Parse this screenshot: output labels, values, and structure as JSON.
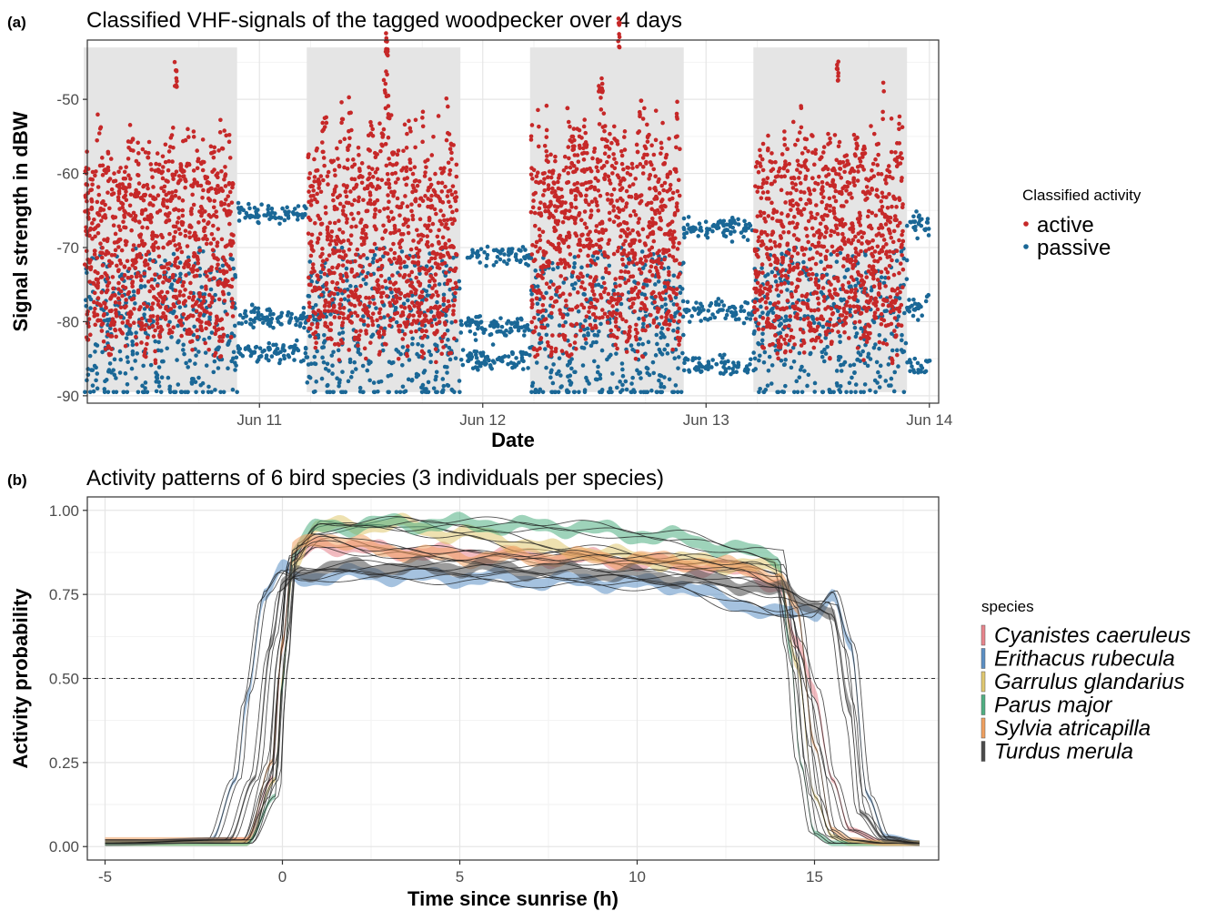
{
  "panels": {
    "a": {
      "tag": "(a)"
    },
    "b": {
      "tag": "(b)"
    }
  },
  "chart_data": [
    {
      "type": "scatter",
      "title": "Classified VHF-signals of the tagged woodpecker over 4 days",
      "xlabel": "Date",
      "ylabel": "Signal strength in dBW",
      "x_unit": "days (Jun 10 = 10.0)",
      "xlim": [
        "Jun 10 05:30",
        "Jun 14 01:00"
      ],
      "ylim": [
        -91,
        -42
      ],
      "x_ticks": [
        {
          "value": 11,
          "label": "Jun 11"
        },
        {
          "value": 12,
          "label": "Jun 12"
        },
        {
          "value": 13,
          "label": "Jun 13"
        },
        {
          "value": 14,
          "label": "Jun 14"
        }
      ],
      "y_ticks": [
        {
          "value": -50,
          "label": "-50"
        },
        {
          "value": -60,
          "label": "-60"
        },
        {
          "value": -70,
          "label": "-70"
        },
        {
          "value": -80,
          "label": "-80"
        },
        {
          "value": -90,
          "label": "-90"
        }
      ],
      "grid": true,
      "background": "#ffffff",
      "shaded_periods": [
        {
          "start": "Jun 10 05:07",
          "end": "Jun 10 21:36",
          "label": "day"
        },
        {
          "start": "Jun 11 05:05",
          "end": "Jun 11 21:36",
          "label": "day"
        },
        {
          "start": "Jun 12 05:05",
          "end": "Jun 12 21:36",
          "label": "day"
        },
        {
          "start": "Jun 13 05:05",
          "end": "Jun 13 21:36",
          "label": "day"
        }
      ],
      "shaded_color": "#e5e5e5",
      "legend": {
        "title": "Classified activity",
        "position": "right",
        "entries": [
          {
            "name": "active",
            "color": "#c62828"
          },
          {
            "name": "passive",
            "color": "#1a6796"
          }
        ]
      },
      "series": [
        {
          "name": "active",
          "color": "#c62828",
          "note": "dense noisy points during daytime; visible maxima per day",
          "daily_peaks": [
            {
              "day": "Jun 10",
              "max": -48.5,
              "min": -88
            },
            {
              "day": "Jun 11",
              "max": -44.5,
              "min": -89
            },
            {
              "day": "Jun 12",
              "max": -43,
              "min": -89
            },
            {
              "day": "Jun 13",
              "max": -47.5,
              "min": -89
            }
          ]
        },
        {
          "name": "passive",
          "color": "#1a6796",
          "note": "night-time bands at several stable signal levels",
          "night_bands": [
            {
              "night": "Jun 10-11",
              "levels": [
                -65.5,
                -79.5,
                -84
              ]
            },
            {
              "night": "Jun 11-12",
              "levels": [
                -71,
                -80.5,
                -85
              ]
            },
            {
              "night": "Jun 12-13",
              "levels": [
                -67.5,
                -78.5,
                -86
              ]
            },
            {
              "night": "Jun 13-14",
              "levels": [
                -67,
                -78,
                -86
              ]
            }
          ]
        }
      ]
    },
    {
      "type": "line",
      "title": "Activity patterns of 6 bird species (3 individuals per species)",
      "xlabel": "Time since sunrise (h)",
      "ylabel": "Activity probability",
      "xlim": [
        -5.5,
        18.5
      ],
      "ylim": [
        -0.04,
        1.04
      ],
      "x_ticks": [
        {
          "value": -5,
          "label": "-5"
        },
        {
          "value": 0,
          "label": "0"
        },
        {
          "value": 5,
          "label": "5"
        },
        {
          "value": 10,
          "label": "10"
        },
        {
          "value": 15,
          "label": "15"
        }
      ],
      "y_ticks": [
        {
          "value": 0,
          "label": "0.00"
        },
        {
          "value": 0.25,
          "label": "0.25"
        },
        {
          "value": 0.5,
          "label": "0.50"
        },
        {
          "value": 0.75,
          "label": "0.75"
        },
        {
          "value": 1,
          "label": "1.00"
        }
      ],
      "grid": true,
      "reference_line": {
        "y": 0.5,
        "style": "dashed"
      },
      "legend": {
        "title": "species",
        "position": "right"
      },
      "series": [
        {
          "name": "Cyanistes caeruleus",
          "color": "#e8848c",
          "x": [
            -5,
            -1,
            -0.3,
            0,
            0.3,
            1,
            3,
            5,
            8,
            11,
            13,
            14,
            14.5,
            15,
            15.5,
            16,
            17,
            18
          ],
          "values": [
            0.01,
            0.02,
            0.2,
            0.6,
            0.85,
            0.9,
            0.88,
            0.87,
            0.86,
            0.84,
            0.82,
            0.78,
            0.6,
            0.45,
            0.2,
            0.05,
            0.01,
            0.01
          ]
        },
        {
          "name": "Erithacus rubecula",
          "color": "#5b8fc4",
          "x": [
            -5,
            -2,
            -1.3,
            -1,
            -0.5,
            0,
            0.5,
            2,
            5,
            8,
            11,
            13,
            14,
            15,
            15.5,
            16,
            16.5,
            17,
            18
          ],
          "values": [
            0.01,
            0.02,
            0.2,
            0.45,
            0.75,
            0.82,
            0.8,
            0.81,
            0.8,
            0.79,
            0.78,
            0.72,
            0.69,
            0.7,
            0.75,
            0.6,
            0.15,
            0.03,
            0.01
          ]
        },
        {
          "name": "Garrulus glandarius",
          "color": "#e0c870",
          "x": [
            -5,
            -1,
            -0.2,
            0,
            0.3,
            1,
            3,
            5,
            8,
            11,
            13,
            14,
            14.5,
            15,
            15.5,
            16,
            17,
            18
          ],
          "values": [
            0.01,
            0.01,
            0.2,
            0.5,
            0.85,
            0.95,
            0.96,
            0.93,
            0.88,
            0.85,
            0.84,
            0.82,
            0.55,
            0.15,
            0.03,
            0.01,
            0.01,
            0.01
          ]
        },
        {
          "name": "Parus major",
          "color": "#4fae82",
          "x": [
            -5,
            -1,
            -0.2,
            0,
            0.3,
            1,
            3,
            5,
            8,
            11,
            13,
            14,
            14.3,
            14.6,
            15,
            15.5,
            17,
            18
          ],
          "values": [
            0.01,
            0.01,
            0.15,
            0.5,
            0.88,
            0.95,
            0.96,
            0.96,
            0.95,
            0.92,
            0.88,
            0.86,
            0.6,
            0.25,
            0.04,
            0.01,
            0.01,
            0.01
          ]
        },
        {
          "name": "Sylvia atricapilla",
          "color": "#f0a060",
          "x": [
            -5,
            -1,
            -0.3,
            0,
            0.3,
            1,
            3,
            5,
            8,
            11,
            13,
            14,
            14.5,
            15,
            15.5,
            16,
            17,
            18
          ],
          "values": [
            0.02,
            0.02,
            0.25,
            0.6,
            0.88,
            0.92,
            0.88,
            0.86,
            0.86,
            0.85,
            0.83,
            0.8,
            0.7,
            0.3,
            0.05,
            0.02,
            0.01,
            0.01
          ]
        },
        {
          "name": "Turdus merula",
          "color": "#4a4a4a",
          "x": [
            -5,
            -1.5,
            -0.8,
            -0.3,
            0,
            0.5,
            2,
            5,
            8,
            11,
            13,
            14,
            15,
            15.5,
            16,
            16.3,
            17,
            18
          ],
          "values": [
            0.01,
            0.02,
            0.2,
            0.6,
            0.78,
            0.82,
            0.83,
            0.83,
            0.82,
            0.8,
            0.78,
            0.76,
            0.72,
            0.7,
            0.4,
            0.1,
            0.02,
            0.01
          ]
        }
      ]
    }
  ]
}
